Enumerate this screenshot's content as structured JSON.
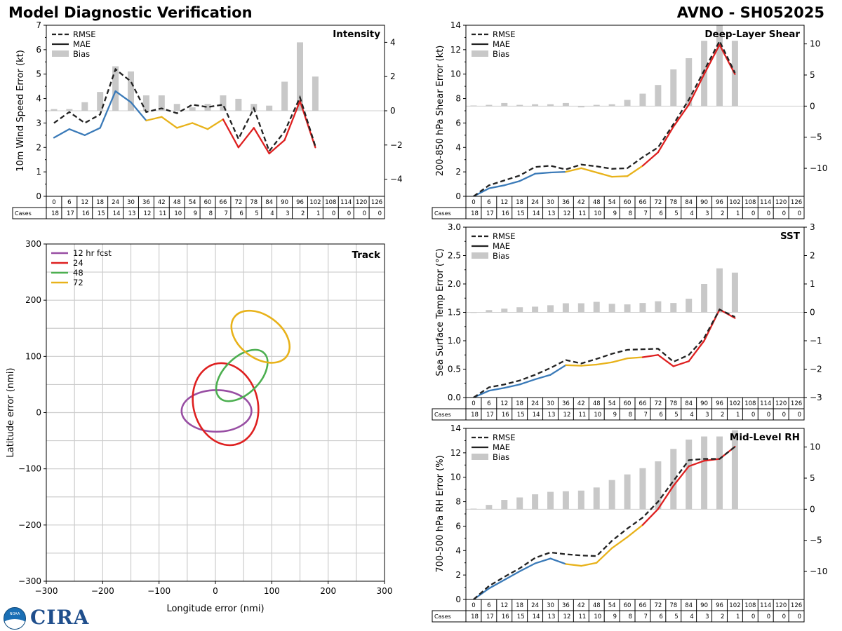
{
  "header": {
    "title_left": "Model Diagnostic Verification",
    "title_right": "AVNO - SH052025"
  },
  "logos": {
    "noaa": "NOAA",
    "cira": "CIRA"
  },
  "lead_hours": [
    "0",
    "6",
    "12",
    "18",
    "24",
    "30",
    "36",
    "42",
    "48",
    "54",
    "60",
    "66",
    "72",
    "78",
    "84",
    "90",
    "96",
    "102",
    "108",
    "114",
    "120",
    "126"
  ],
  "colors": {
    "rmse": "#222222",
    "bias": "#c8c8c8",
    "seg_blue": "#3a7ab8",
    "seg_yellow": "#e8b21a",
    "seg_red": "#de2020",
    "track_12": "#984ea3",
    "track_24": "#de2020",
    "track_48": "#4caf50",
    "track_72": "#e8b21a",
    "grid": "#cccccc"
  },
  "legend_labels": {
    "rmse": "RMSE",
    "mae": "MAE",
    "bias": "Bias"
  },
  "cases_label": "Cases",
  "chart_data": [
    {
      "id": "intensity",
      "type": "line",
      "title": "Intensity",
      "ylabel": "10m Wind Speed Error (kt)",
      "ylim": [
        0,
        7
      ],
      "yticks": [
        "0",
        "1",
        "2",
        "3",
        "4",
        "5",
        "6",
        "7"
      ],
      "y2lim": [
        -5,
        5
      ],
      "y2ticks": [
        {
          "v": -4,
          "label": "−4"
        },
        {
          "v": -2,
          "label": "−2"
        },
        {
          "v": 0,
          "label": "0"
        },
        {
          "v": 2,
          "label": "2"
        },
        {
          "v": 4,
          "label": "4"
        }
      ],
      "rmse": [
        3.0,
        3.45,
        3.0,
        3.35,
        5.2,
        4.7,
        3.45,
        3.6,
        3.4,
        3.75,
        3.65,
        3.75,
        2.35,
        3.6,
        1.85,
        2.65,
        4.05,
        2.05,
        null,
        null,
        null,
        null
      ],
      "mae": [
        2.4,
        2.75,
        2.5,
        2.8,
        4.3,
        3.85,
        3.1,
        3.25,
        2.8,
        3.0,
        2.75,
        3.15,
        2.0,
        2.8,
        1.75,
        2.3,
        3.9,
        2.0,
        null,
        null,
        null,
        null
      ],
      "bias": [
        0.1,
        0.1,
        0.5,
        1.1,
        2.6,
        2.3,
        0.9,
        0.9,
        0.4,
        0.2,
        0.4,
        0.9,
        0.7,
        0.4,
        0.3,
        1.7,
        4.0,
        2.0,
        null,
        null,
        null,
        null
      ],
      "cases": [
        "18",
        "17",
        "16",
        "15",
        "14",
        "13",
        "12",
        "11",
        "10",
        "9",
        "8",
        "7",
        "6",
        "5",
        "4",
        "3",
        "2",
        "1",
        "0",
        "0",
        "0",
        "0"
      ]
    },
    {
      "id": "shear",
      "type": "line",
      "title": "Deep-Layer Shear",
      "ylabel": "200-850 hPa Shear Error (kt)",
      "ylim": [
        0,
        14
      ],
      "yticks": [
        "0",
        "2",
        "4",
        "6",
        "8",
        "10",
        "12",
        "14"
      ],
      "y2lim": [
        -14.5,
        13
      ],
      "y2ticks": [
        {
          "v": -10,
          "label": "−10"
        },
        {
          "v": -5,
          "label": "−5"
        },
        {
          "v": 0,
          "label": "0"
        },
        {
          "v": 5,
          "label": "5"
        },
        {
          "v": 10,
          "label": "10"
        }
      ],
      "rmse": [
        0,
        0.9,
        1.3,
        1.7,
        2.4,
        2.5,
        2.2,
        2.6,
        2.45,
        2.25,
        2.3,
        3.2,
        4.0,
        5.9,
        7.9,
        10.3,
        12.7,
        10.1,
        null,
        null,
        null,
        null
      ],
      "mae": [
        0,
        0.65,
        0.9,
        1.25,
        1.85,
        1.95,
        2.0,
        2.3,
        1.95,
        1.6,
        1.65,
        2.5,
        3.6,
        5.7,
        7.5,
        10.0,
        12.4,
        10.0,
        null,
        null,
        null,
        null
      ],
      "bias": [
        0.1,
        0.2,
        0.5,
        0.2,
        0.3,
        0.3,
        0.5,
        -0.2,
        0.2,
        0.3,
        1.0,
        2.0,
        3.4,
        5.9,
        7.7,
        10.5,
        13.0,
        10.5,
        null,
        null,
        null,
        null
      ],
      "cases": [
        "18",
        "17",
        "16",
        "15",
        "14",
        "13",
        "12",
        "11",
        "10",
        "9",
        "8",
        "7",
        "6",
        "5",
        "4",
        "3",
        "2",
        "1",
        "0",
        "0",
        "0",
        "0"
      ]
    },
    {
      "id": "sst",
      "type": "line",
      "title": "SST",
      "ylabel": "Sea Surface Temp Error (°C)",
      "ylim": [
        0,
        3.0
      ],
      "yticks": [
        "0.0",
        "0.5",
        "1.0",
        "1.5",
        "2.0",
        "2.5",
        "3.0"
      ],
      "y2lim": [
        -3,
        3
      ],
      "y2ticks": [
        {
          "v": -3,
          "label": "−3"
        },
        {
          "v": -2,
          "label": "−2"
        },
        {
          "v": -1,
          "label": "−1"
        },
        {
          "v": 0,
          "label": "0"
        },
        {
          "v": 1,
          "label": "1"
        },
        {
          "v": 2,
          "label": "2"
        },
        {
          "v": 3,
          "label": "3"
        }
      ],
      "rmse": [
        0,
        0.18,
        0.23,
        0.3,
        0.4,
        0.52,
        0.66,
        0.6,
        0.68,
        0.77,
        0.84,
        0.85,
        0.86,
        0.63,
        0.75,
        1.05,
        1.55,
        1.42,
        null,
        null,
        null,
        null
      ],
      "mae": [
        0,
        0.12,
        0.17,
        0.23,
        0.32,
        0.4,
        0.57,
        0.56,
        0.58,
        0.62,
        0.69,
        0.71,
        0.75,
        0.55,
        0.64,
        1.0,
        1.55,
        1.4,
        null,
        null,
        null,
        null
      ],
      "bias": [
        0.0,
        0.08,
        0.13,
        0.18,
        0.2,
        0.25,
        0.32,
        0.32,
        0.37,
        0.3,
        0.28,
        0.33,
        0.39,
        0.33,
        0.48,
        1.0,
        1.55,
        1.4,
        null,
        null,
        null,
        null
      ],
      "cases": [
        "18",
        "17",
        "16",
        "15",
        "14",
        "13",
        "12",
        "11",
        "10",
        "9",
        "8",
        "7",
        "6",
        "5",
        "4",
        "3",
        "2",
        "1",
        "0",
        "0",
        "0",
        "0"
      ]
    },
    {
      "id": "rh",
      "type": "line",
      "title": "Mid-Level RH",
      "ylabel": "700-500 hPa RH Error (%)",
      "ylim": [
        0,
        14
      ],
      "yticks": [
        "0",
        "2",
        "4",
        "6",
        "8",
        "10",
        "12",
        "14"
      ],
      "y2lim": [
        -14.5,
        13
      ],
      "y2ticks": [
        {
          "v": -10,
          "label": "−10"
        },
        {
          "v": -5,
          "label": "−5"
        },
        {
          "v": 0,
          "label": "0"
        },
        {
          "v": 5,
          "label": "5"
        },
        {
          "v": 10,
          "label": "10"
        }
      ],
      "rmse": [
        0,
        1.1,
        1.85,
        2.55,
        3.4,
        3.85,
        3.7,
        3.6,
        3.55,
        4.8,
        5.8,
        6.7,
        8.0,
        9.7,
        11.4,
        11.5,
        11.5,
        12.5,
        null,
        null,
        null,
        null
      ],
      "mae": [
        0,
        0.9,
        1.6,
        2.3,
        2.95,
        3.35,
        2.9,
        2.75,
        3.0,
        4.2,
        5.1,
        6.1,
        7.4,
        9.3,
        10.9,
        11.35,
        11.5,
        12.5,
        null,
        null,
        null,
        null
      ],
      "bias": [
        0.1,
        0.7,
        1.5,
        1.9,
        2.4,
        2.8,
        2.9,
        3.0,
        3.5,
        4.7,
        5.6,
        6.6,
        7.7,
        9.7,
        11.2,
        11.7,
        11.7,
        12.7,
        null,
        null,
        null,
        null
      ],
      "cases": [
        "18",
        "17",
        "16",
        "15",
        "14",
        "13",
        "12",
        "11",
        "10",
        "9",
        "8",
        "7",
        "6",
        "5",
        "4",
        "3",
        "2",
        "1",
        "0",
        "0",
        "0",
        "0"
      ]
    },
    {
      "id": "track",
      "type": "scatter",
      "title": "Track",
      "xlabel": "Longitude error (nmi)",
      "ylabel": "Latitude error (nmi)",
      "xlim": [
        -300,
        300
      ],
      "ylim": [
        -300,
        300
      ],
      "xticks": [
        {
          "v": -300,
          "label": "−300"
        },
        {
          "v": -200,
          "label": "−200"
        },
        {
          "v": -100,
          "label": "−100"
        },
        {
          "v": 0,
          "label": "0"
        },
        {
          "v": 100,
          "label": "100"
        },
        {
          "v": 200,
          "label": "200"
        },
        {
          "v": 300,
          "label": "300"
        }
      ],
      "yticks": [
        {
          "v": -300,
          "label": "−300"
        },
        {
          "v": -200,
          "label": "−200"
        },
        {
          "v": -100,
          "label": "−100"
        },
        {
          "v": 0,
          "label": "0"
        },
        {
          "v": 100,
          "label": "100"
        },
        {
          "v": 200,
          "label": "200"
        },
        {
          "v": 300,
          "label": "300"
        }
      ],
      "legend": [
        {
          "label": "12 hr fcst",
          "color_key": "track_12"
        },
        {
          "label": "24",
          "color_key": "track_24"
        },
        {
          "label": "48",
          "color_key": "track_48"
        },
        {
          "label": "72",
          "color_key": "track_72"
        }
      ],
      "ellipses": [
        {
          "name": "12 hr fcst",
          "color_key": "track_12",
          "cx": 2,
          "cy": 3,
          "rx": 62,
          "ry": 37,
          "angle": 0
        },
        {
          "name": "24",
          "color_key": "track_24",
          "cx": 18,
          "cy": 15,
          "rx": 57,
          "ry": 74,
          "angle": 15
        },
        {
          "name": "48",
          "color_key": "track_48",
          "cx": 47,
          "cy": 66,
          "rx": 56,
          "ry": 32,
          "angle": 45
        },
        {
          "name": "72",
          "color_key": "track_72",
          "cx": 80,
          "cy": 135,
          "rx": 58,
          "ry": 38,
          "angle": -37
        }
      ]
    }
  ]
}
